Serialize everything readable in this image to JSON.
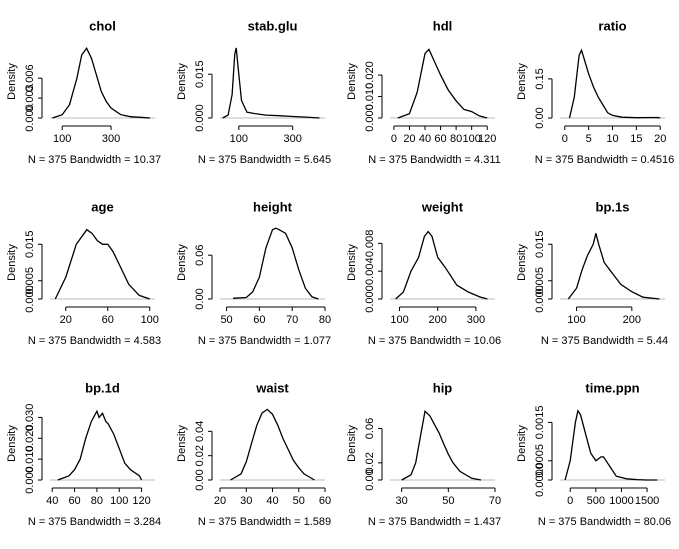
{
  "chart_data": [
    {
      "type": "line",
      "title": "chol",
      "xlabel": "N = 375   Bandwidth = 10.37",
      "ylabel": "Density",
      "color": "#000000",
      "xlim": [
        50,
        480
      ],
      "xticks": [
        100,
        300
      ],
      "ylim": [
        0,
        0.011
      ],
      "yticks": [
        {
          "value": 0,
          "label": "0.000"
        },
        {
          "value": 0.003,
          "label": "0.003"
        },
        {
          "value": 0.006,
          "label": "0.006"
        }
      ],
      "x": [
        60,
        100,
        130,
        160,
        180,
        200,
        220,
        240,
        260,
        280,
        300,
        340,
        380,
        420,
        460
      ],
      "values": [
        0,
        0.0005,
        0.002,
        0.006,
        0.0095,
        0.0105,
        0.009,
        0.0065,
        0.004,
        0.0025,
        0.0015,
        0.0005,
        0.0002,
        0.0001,
        0
      ]
    },
    {
      "type": "line",
      "title": "stab.glu",
      "xlabel": "N = 375   Bandwidth = 5.645",
      "ylabel": "Density",
      "color": "#000000",
      "xlim": [
        30,
        420
      ],
      "xticks": [
        100,
        300
      ],
      "ylim": [
        0,
        0.025
      ],
      "yticks": [
        {
          "value": 0,
          "label": "0.000"
        },
        {
          "value": 0.015,
          "label": "0.015"
        }
      ],
      "x": [
        40,
        60,
        75,
        85,
        90,
        100,
        110,
        130,
        160,
        200,
        250,
        300,
        350,
        400
      ],
      "values": [
        0,
        0.001,
        0.008,
        0.022,
        0.024,
        0.015,
        0.006,
        0.002,
        0.0015,
        0.001,
        0.0008,
        0.0005,
        0.0003,
        0
      ]
    },
    {
      "type": "line",
      "title": "hdl",
      "xlabel": "N = 375   Bandwidth = 4.311",
      "ylabel": "Density",
      "color": "#000000",
      "xlim": [
        -5,
        130
      ],
      "xticks": [
        0,
        20,
        40,
        60,
        80,
        100,
        120
      ],
      "ylim": [
        0,
        0.034
      ],
      "yticks": [
        {
          "value": 0,
          "label": "0.000"
        },
        {
          "value": 0.01,
          "label": "0.010"
        },
        {
          "value": 0.02,
          "label": "0.020"
        }
      ],
      "x": [
        5,
        20,
        30,
        40,
        45,
        50,
        60,
        70,
        80,
        90,
        100,
        110,
        120
      ],
      "values": [
        0,
        0.002,
        0.012,
        0.03,
        0.032,
        0.028,
        0.02,
        0.013,
        0.008,
        0.004,
        0.003,
        0.001,
        0
      ]
    },
    {
      "type": "line",
      "title": "ratio",
      "xlabel": "N = 375   Bandwidth = 0.4516",
      "ylabel": "Density",
      "color": "#000000",
      "xlim": [
        -1,
        21
      ],
      "xticks": [
        0,
        5,
        10,
        15,
        20
      ],
      "ylim": [
        0,
        0.28
      ],
      "yticks": [
        {
          "value": 0,
          "label": "0.00"
        },
        {
          "value": 0.15,
          "label": "0.15"
        }
      ],
      "x": [
        1,
        2,
        3,
        3.5,
        4,
        5,
        6,
        7,
        8,
        9,
        10,
        12,
        15,
        19.5,
        20
      ],
      "values": [
        0,
        0.08,
        0.24,
        0.26,
        0.23,
        0.17,
        0.12,
        0.08,
        0.05,
        0.02,
        0.01,
        0.003,
        0.001,
        0.002,
        0
      ]
    },
    {
      "type": "line",
      "title": "age",
      "xlabel": "N = 375   Bandwidth = 4.583",
      "ylabel": "Density",
      "color": "#000000",
      "xlim": [
        5,
        105
      ],
      "xticks": [
        20,
        60,
        100
      ],
      "ylim": [
        0,
        0.02
      ],
      "yticks": [
        {
          "value": 0,
          "label": "0.000"
        },
        {
          "value": 0.005,
          "label": "0.005"
        },
        {
          "value": 0.015,
          "label": "0.015"
        }
      ],
      "x": [
        10,
        20,
        30,
        40,
        45,
        50,
        55,
        60,
        65,
        70,
        80,
        90,
        100
      ],
      "values": [
        0,
        0.006,
        0.015,
        0.019,
        0.018,
        0.016,
        0.015,
        0.015,
        0.013,
        0.01,
        0.004,
        0.001,
        0
      ]
    },
    {
      "type": "line",
      "title": "height",
      "xlabel": "N = 375   Bandwidth = 1.077",
      "ylabel": "Density",
      "color": "#000000",
      "xlim": [
        48,
        80
      ],
      "xticks": [
        50,
        60,
        70,
        80
      ],
      "ylim": [
        0,
        0.1
      ],
      "yticks": [
        {
          "value": 0,
          "label": "0.00"
        },
        {
          "value": 0.06,
          "label": "0.06"
        }
      ],
      "x": [
        52,
        56,
        58,
        60,
        62,
        64,
        65,
        66,
        68,
        70,
        72,
        74,
        76,
        78
      ],
      "values": [
        0.001,
        0.002,
        0.01,
        0.03,
        0.07,
        0.095,
        0.097,
        0.095,
        0.09,
        0.07,
        0.04,
        0.015,
        0.003,
        0
      ]
    },
    {
      "type": "line",
      "title": "weight",
      "xlabel": "N = 375   Bandwidth = 10.06",
      "ylabel": "Density",
      "color": "#000000",
      "xlim": [
        75,
        350
      ],
      "xticks": [
        100,
        200,
        300
      ],
      "ylim": [
        0,
        0.0105
      ],
      "yticks": [
        {
          "value": 0,
          "label": "0.000"
        },
        {
          "value": 0.004,
          "label": "0.004"
        },
        {
          "value": 0.008,
          "label": "0.008"
        }
      ],
      "x": [
        90,
        110,
        130,
        150,
        165,
        175,
        185,
        200,
        220,
        250,
        280,
        310,
        330
      ],
      "values": [
        0,
        0.001,
        0.004,
        0.006,
        0.009,
        0.0097,
        0.009,
        0.006,
        0.0045,
        0.002,
        0.001,
        0.0003,
        0
      ]
    },
    {
      "type": "line",
      "title": "bp.1s",
      "xlabel": "N = 375   Bandwidth = 5.44",
      "ylabel": "Density",
      "color": "#000000",
      "xlim": [
        70,
        260
      ],
      "xticks": [
        100,
        200
      ],
      "ylim": [
        0,
        0.02
      ],
      "yticks": [
        {
          "value": 0,
          "label": "0.000"
        },
        {
          "value": 0.005,
          "label": "0.005"
        },
        {
          "value": 0.015,
          "label": "0.015"
        }
      ],
      "x": [
        85,
        100,
        110,
        120,
        130,
        135,
        140,
        150,
        160,
        170,
        180,
        200,
        220,
        250
      ],
      "values": [
        0,
        0.003,
        0.008,
        0.012,
        0.015,
        0.018,
        0.015,
        0.01,
        0.008,
        0.006,
        0.004,
        0.002,
        0.0005,
        0
      ]
    },
    {
      "type": "line",
      "title": "bp.1d",
      "xlabel": "N = 375   Bandwidth = 3.284",
      "ylabel": "Density",
      "color": "#000000",
      "xlim": [
        38,
        132
      ],
      "xticks": [
        40,
        60,
        80,
        100,
        120
      ],
      "ylim": [
        0,
        0.035
      ],
      "yticks": [
        {
          "value": 0,
          "label": "0.000"
        },
        {
          "value": 0.01,
          "label": "0.010"
        },
        {
          "value": 0.02,
          "label": "0.020"
        },
        {
          "value": 0.03,
          "label": "0.030"
        }
      ],
      "x": [
        45,
        55,
        60,
        65,
        70,
        75,
        80,
        82,
        85,
        88,
        90,
        95,
        100,
        105,
        110,
        118,
        120
      ],
      "values": [
        0,
        0.002,
        0.005,
        0.01,
        0.02,
        0.028,
        0.033,
        0.03,
        0.032,
        0.028,
        0.027,
        0.022,
        0.015,
        0.008,
        0.005,
        0.002,
        0
      ]
    },
    {
      "type": "line",
      "title": "waist",
      "xlabel": "N = 375   Bandwidth = 1.589",
      "ylabel": "Density",
      "color": "#000000",
      "xlim": [
        20,
        60
      ],
      "xticks": [
        20,
        30,
        40,
        50,
        60
      ],
      "ylim": [
        0,
        0.06
      ],
      "yticks": [
        {
          "value": 0,
          "label": "0.00"
        },
        {
          "value": 0.02,
          "label": "0.02"
        },
        {
          "value": 0.04,
          "label": "0.04"
        }
      ],
      "x": [
        24,
        28,
        30,
        32,
        34,
        36,
        38,
        40,
        42,
        44,
        46,
        48,
        50,
        52,
        56
      ],
      "values": [
        0,
        0.005,
        0.015,
        0.03,
        0.045,
        0.055,
        0.058,
        0.054,
        0.045,
        0.034,
        0.025,
        0.016,
        0.01,
        0.005,
        0
      ]
    },
    {
      "type": "line",
      "title": "hip",
      "xlabel": "N = 375   Bandwidth = 1.437",
      "ylabel": "Density",
      "color": "#000000",
      "xlim": [
        25,
        70
      ],
      "xticks": [
        30,
        50,
        70
      ],
      "ylim": [
        0,
        0.085
      ],
      "yticks": [
        {
          "value": 0,
          "label": "0.00"
        },
        {
          "value": 0.02,
          "label": "0.02"
        },
        {
          "value": 0.06,
          "label": "0.06"
        }
      ],
      "x": [
        30,
        34,
        36,
        38,
        40,
        42,
        44,
        46,
        48,
        50,
        52,
        55,
        60,
        64
      ],
      "values": [
        0,
        0.006,
        0.02,
        0.05,
        0.08,
        0.075,
        0.065,
        0.055,
        0.042,
        0.03,
        0.02,
        0.01,
        0.002,
        0
      ]
    },
    {
      "type": "line",
      "title": "time.ppn",
      "xlabel": "N = 375   Bandwidth = 80.06",
      "ylabel": "Density",
      "color": "#000000",
      "xlim": [
        -200,
        1850
      ],
      "xticks": [
        0,
        500,
        1000,
        1500
      ],
      "ylim": [
        0,
        0.0019
      ],
      "yticks": [
        {
          "value": 0,
          "label": "0.0000"
        },
        {
          "value": 0.0005,
          "label": "0.0005"
        },
        {
          "value": 0.0015,
          "label": "0.0015"
        }
      ],
      "x": [
        -100,
        0,
        100,
        150,
        200,
        300,
        400,
        500,
        600,
        650,
        700,
        800,
        900,
        1100,
        1300,
        1500,
        1700
      ],
      "values": [
        0,
        0.0005,
        0.0015,
        0.0018,
        0.0017,
        0.0012,
        0.0007,
        0.0005,
        0.0006,
        0.0006,
        0.0005,
        0.0003,
        0.0001,
        3e-05,
        1e-05,
        0,
        0
      ]
    }
  ]
}
